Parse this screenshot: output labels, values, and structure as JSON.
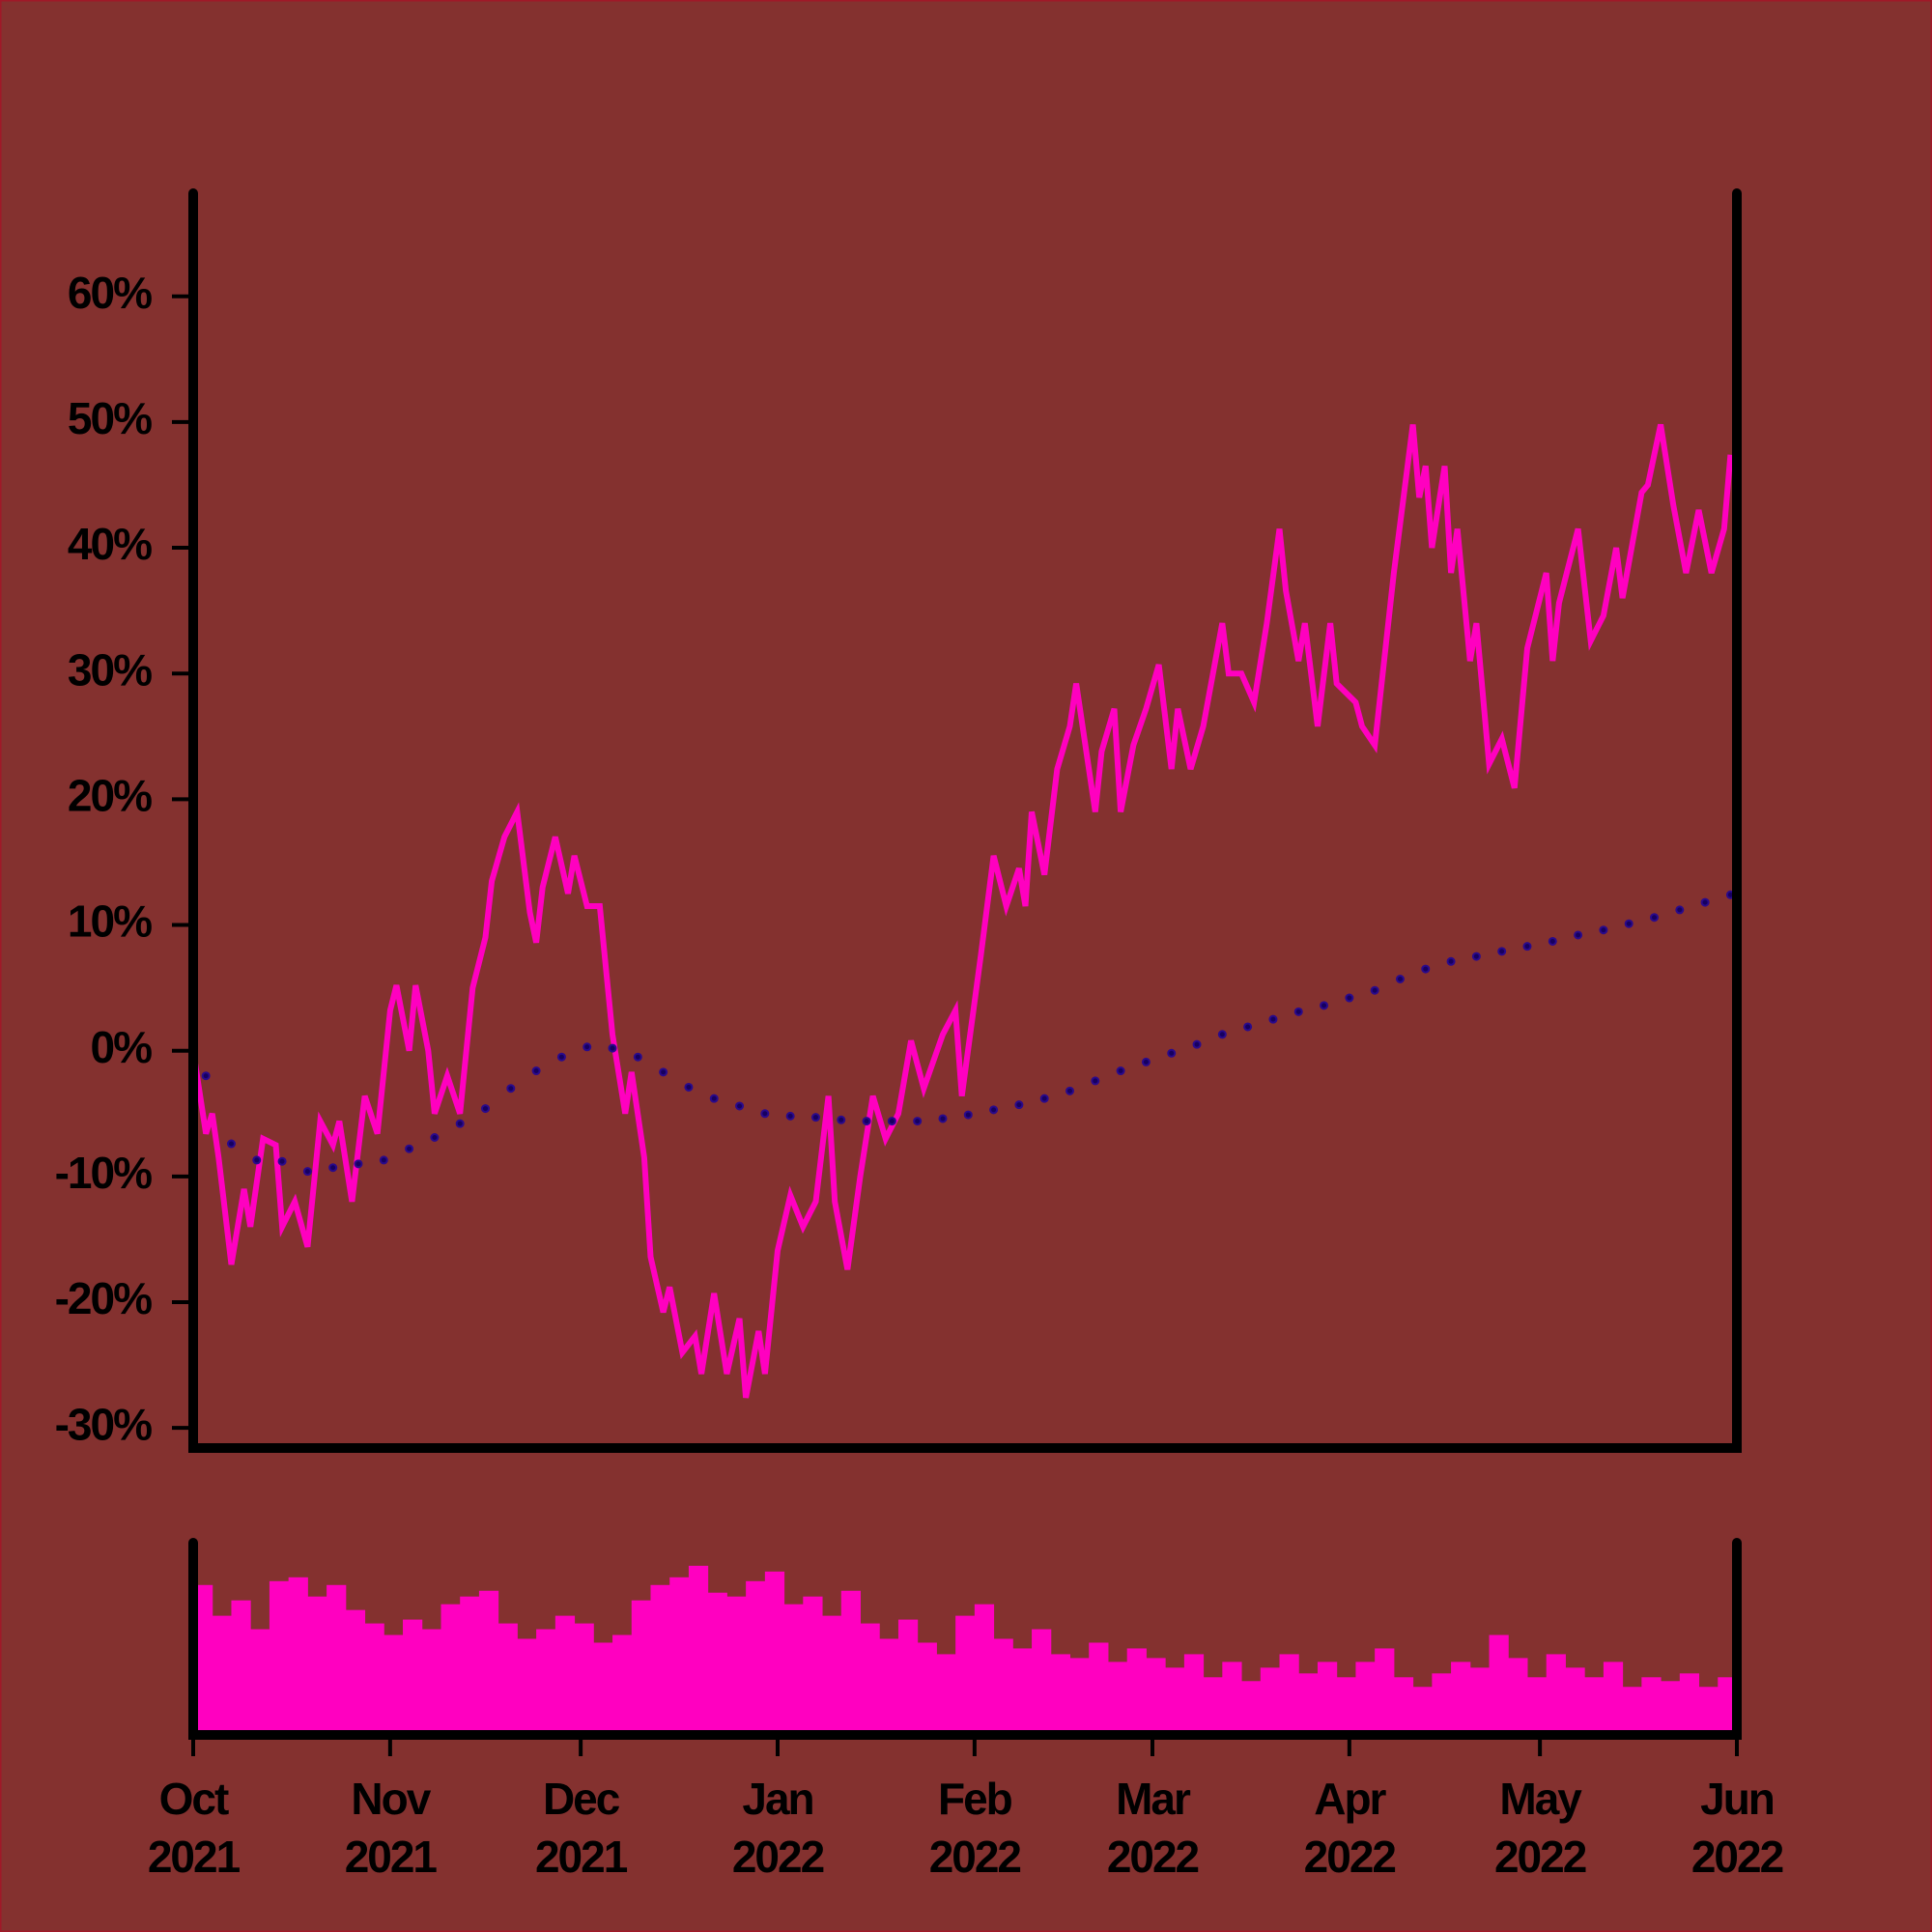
{
  "chart_data": [
    {
      "type": "line",
      "xlim": [
        0,
        243
      ],
      "ylim": [
        -31.6,
        68.2
      ],
      "yticks": [
        {
          "value": -30,
          "label": "-30%"
        },
        {
          "value": -20,
          "label": "-20%"
        },
        {
          "value": -10,
          "label": "-10%"
        },
        {
          "value": 0,
          "label": "0%"
        },
        {
          "value": 10,
          "label": "10%"
        },
        {
          "value": 20,
          "label": "20%"
        },
        {
          "value": 30,
          "label": "30%"
        },
        {
          "value": 40,
          "label": "40%"
        },
        {
          "value": 50,
          "label": "50%"
        },
        {
          "value": 60,
          "label": "60%"
        }
      ],
      "series": [
        {
          "color": "#ff00c0",
          "style": "solid",
          "x": [
            0,
            2,
            3,
            4,
            6,
            8,
            9,
            11,
            13,
            14,
            16,
            18,
            20,
            22,
            23,
            25,
            27,
            29,
            31,
            32,
            34,
            35,
            37,
            38,
            40,
            42,
            44,
            46,
            47,
            49,
            51,
            53,
            54,
            55,
            57,
            59,
            60,
            62,
            64,
            66,
            68,
            69,
            71,
            72,
            74,
            75,
            77,
            79,
            80,
            82,
            84,
            86,
            87,
            89,
            90,
            92,
            94,
            96,
            98,
            100,
            101,
            103,
            105,
            107,
            109,
            111,
            113,
            115,
            118,
            120,
            121,
            124,
            126,
            128,
            130,
            131,
            132,
            134,
            136,
            138,
            139,
            142,
            143,
            145,
            146,
            148,
            150,
            152,
            154,
            155,
            157,
            159,
            162,
            163,
            165,
            167,
            169,
            171,
            172,
            174,
            175,
            177,
            179,
            180,
            183,
            184,
            186,
            189,
            192,
            193,
            194,
            195,
            197,
            198,
            199,
            201,
            202,
            204,
            206,
            208,
            210,
            213,
            214,
            215,
            218,
            220,
            222,
            224,
            225,
            228,
            229,
            231,
            233,
            235,
            237,
            239,
            241,
            242
          ],
          "values": [
            0,
            -6.6,
            -5,
            -8.5,
            -17,
            -11,
            -14,
            -7,
            -7.5,
            -14,
            -12,
            -15.6,
            -5.6,
            -7.5,
            -5.6,
            -12,
            -3.6,
            -6.6,
            3.2,
            5.2,
            0,
            5.2,
            0,
            -5,
            -2,
            -5,
            5,
            9,
            13.5,
            17,
            19,
            11,
            8.6,
            13,
            17,
            12.5,
            15.5,
            11.5,
            11.5,
            1.3,
            -5,
            -1.7,
            -8.5,
            -16.4,
            -20.8,
            -18.8,
            -24,
            -22.7,
            -25.7,
            -19.3,
            -25.7,
            -21.3,
            -27.6,
            -22.3,
            -25.7,
            -15.9,
            -11.5,
            -14,
            -12,
            -3.6,
            -12,
            -17.4,
            -10,
            -3.6,
            -7,
            -5,
            0.8,
            -3,
            1.3,
            3.2,
            -3.6,
            7.6,
            15.5,
            11.5,
            14.5,
            11.5,
            19,
            14,
            22.4,
            25.8,
            29.2,
            19,
            23.8,
            27.2,
            19,
            24.3,
            27.2,
            30.7,
            22.4,
            27.2,
            22.4,
            25.8,
            34,
            30,
            30,
            27.7,
            34,
            41.5,
            36.6,
            31,
            34,
            25.8,
            34,
            29.2,
            27.7,
            25.8,
            24.3,
            38,
            49.8,
            44,
            46.5,
            40,
            46.5,
            38,
            41.5,
            31,
            34,
            22.8,
            24.8,
            20.9,
            32,
            38,
            31,
            35.6,
            41.5,
            32.6,
            34.6,
            40,
            36,
            44.4,
            45,
            49.8,
            43.4,
            38,
            43,
            38,
            41.5,
            47.4
          ]
        },
        {
          "color": "#2a0a8c",
          "style": "dotted",
          "x": [
            2,
            6,
            10,
            14,
            18,
            22,
            26,
            30,
            34,
            38,
            42,
            46,
            50,
            54,
            58,
            62,
            66,
            70,
            74,
            78,
            82,
            86,
            90,
            94,
            98,
            102,
            106,
            110,
            114,
            118,
            122,
            126,
            130,
            134,
            138,
            142,
            146,
            150,
            154,
            158,
            162,
            166,
            170,
            174,
            178,
            182,
            186,
            190,
            194,
            198,
            202,
            206,
            210,
            214,
            218,
            222,
            226,
            230,
            234,
            238,
            242
          ],
          "values": [
            -2,
            -7.4,
            -8.7,
            -8.8,
            -9.6,
            -9.3,
            -9,
            -8.7,
            -7.8,
            -6.9,
            -5.8,
            -4.6,
            -3,
            -1.6,
            -0.5,
            0.3,
            0.2,
            -0.5,
            -1.7,
            -2.9,
            -3.8,
            -4.4,
            -5,
            -5.2,
            -5.3,
            -5.5,
            -5.6,
            -5.6,
            -5.6,
            -5.4,
            -5.1,
            -4.7,
            -4.3,
            -3.8,
            -3.2,
            -2.4,
            -1.6,
            -0.9,
            -0.2,
            0.5,
            1.3,
            1.9,
            2.5,
            3.1,
            3.6,
            4.2,
            4.8,
            5.7,
            6.5,
            7.1,
            7.5,
            7.9,
            8.3,
            8.7,
            9.2,
            9.6,
            10.1,
            10.6,
            11.2,
            11.8,
            12.4
          ]
        }
      ]
    },
    {
      "type": "bar",
      "color": "#ff00c0",
      "xlim": [
        0,
        243
      ],
      "ylim": [
        0,
        100
      ],
      "xticks": [
        {
          "value": 0,
          "label": [
            "Oct",
            "2021"
          ]
        },
        {
          "value": 31,
          "label": [
            "Nov",
            "2021"
          ]
        },
        {
          "value": 61,
          "label": [
            "Dec",
            "2021"
          ]
        },
        {
          "value": 92,
          "label": [
            "Jan",
            "2022"
          ]
        },
        {
          "value": 123,
          "label": [
            "Feb",
            "2022"
          ]
        },
        {
          "value": 151,
          "label": [
            "Mar",
            "2022"
          ]
        },
        {
          "value": 182,
          "label": [
            "Apr",
            "2022"
          ]
        },
        {
          "value": 212,
          "label": [
            "May",
            "2022"
          ]
        },
        {
          "value": 243,
          "label": [
            "Jun",
            "2022"
          ]
        }
      ],
      "x": [
        0,
        3,
        6,
        9,
        12,
        15,
        18,
        21,
        24,
        27,
        30,
        33,
        36,
        39,
        42,
        45,
        48,
        51,
        54,
        57,
        60,
        63,
        66,
        69,
        72,
        75,
        78,
        81,
        84,
        87,
        90,
        93,
        96,
        99,
        102,
        105,
        108,
        111,
        114,
        117,
        120,
        123,
        126,
        129,
        132,
        135,
        138,
        141,
        144,
        147,
        150,
        153,
        156,
        159,
        162,
        165,
        168,
        171,
        174,
        177,
        180,
        183,
        186,
        189,
        192,
        195,
        198,
        201,
        204,
        207,
        210,
        213,
        216,
        219,
        222,
        225,
        228,
        231,
        234,
        237,
        240
      ],
      "values": [
        78,
        62,
        70,
        55,
        80,
        82,
        72,
        78,
        65,
        58,
        52,
        60,
        55,
        68,
        72,
        75,
        58,
        50,
        55,
        62,
        58,
        48,
        52,
        70,
        78,
        82,
        88,
        74,
        72,
        80,
        85,
        68,
        72,
        62,
        75,
        58,
        50,
        60,
        48,
        42,
        62,
        68,
        50,
        45,
        55,
        42,
        40,
        48,
        38,
        45,
        40,
        35,
        42,
        30,
        38,
        28,
        35,
        42,
        32,
        38,
        30,
        38,
        45,
        30,
        25,
        32,
        38,
        35,
        52,
        40,
        30,
        42,
        35,
        30,
        38,
        25,
        30,
        28,
        32,
        25,
        30
      ]
    }
  ]
}
